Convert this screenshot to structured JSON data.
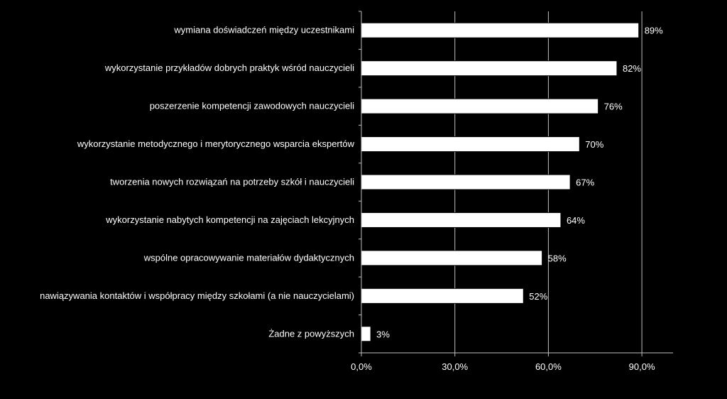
{
  "chart_data": {
    "type": "bar",
    "orientation": "horizontal",
    "categories": [
      "wymiana doświadczeń między uczestnikami",
      "wykorzystanie przykładów dobrych praktyk wśród nauczycieli",
      "poszerzenie kompetencji zawodowych nauczycieli",
      "wykorzystanie metodycznego i merytorycznego wsparcia ekspertów",
      "tworzenia nowych rozwiązań na potrzeby szkół i nauczycieli",
      "wykorzystanie nabytych kompetencji na zajęciach lekcyjnych",
      "wspólne opracowywanie materiałów dydaktycznych",
      "nawiązywania kontaktów i współpracy między szkołami (a nie nauczycielami)",
      "Żadne z powyższych"
    ],
    "values": [
      89,
      82,
      76,
      70,
      67,
      64,
      58,
      52,
      3
    ],
    "data_labels": [
      "89%",
      "82%",
      "76%",
      "70%",
      "67%",
      "64%",
      "58%",
      "52%",
      "3%"
    ],
    "x_ticks": [
      0,
      30,
      60,
      90
    ],
    "x_tick_labels": [
      "0,0%",
      "30,0%",
      "60,0%",
      "90,0%"
    ],
    "xlim": [
      0,
      100
    ],
    "grid": "vertical",
    "colors": {
      "background": "#000000",
      "bar": "#ffffff",
      "bar_border": "#000000",
      "text": "#ffffff",
      "grid": "#bfbfbf",
      "axis": "#bfbfbf"
    }
  }
}
